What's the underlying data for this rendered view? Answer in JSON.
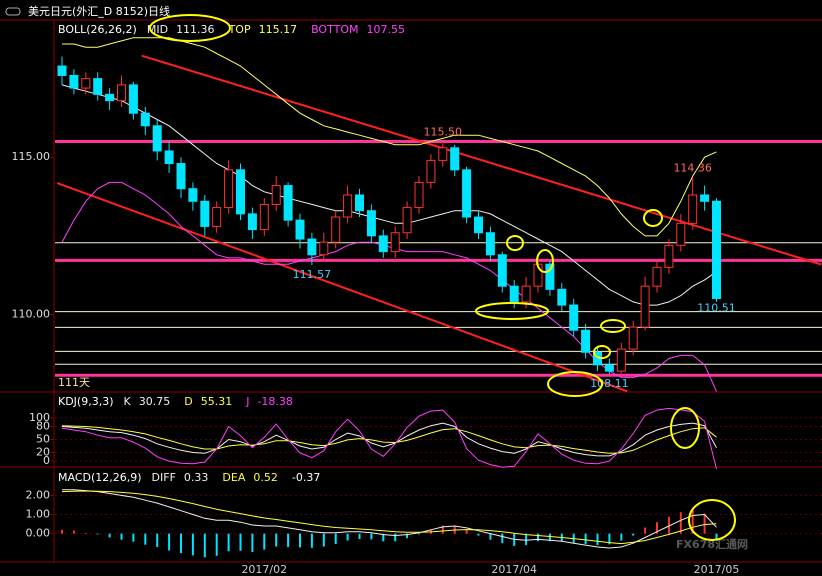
{
  "chart_data": [
    {
      "type": "candlestick",
      "title": "美元日元(外汇_D 8152)日线",
      "indicator": "BOLL(26,26,2)",
      "categories": [
        null,
        null,
        null,
        null,
        null,
        null,
        null,
        null,
        null,
        null,
        null,
        null,
        null,
        null,
        null,
        null,
        null,
        "2017/02",
        null,
        null,
        null,
        null,
        null,
        null,
        null,
        null,
        null,
        null,
        null,
        null,
        null,
        null,
        null,
        null,
        null,
        null,
        null,
        null,
        "2017/04",
        null,
        null,
        null,
        null,
        null,
        null,
        null,
        null,
        null,
        null,
        null,
        null,
        null,
        null,
        null,
        null,
        "2017/05"
      ],
      "open": [
        117.9,
        117.6,
        117.2,
        117.5,
        117.0,
        116.8,
        117.3,
        116.4,
        116.0,
        115.2,
        114.8,
        114.0,
        113.6,
        112.8,
        113.4,
        114.6,
        113.2,
        112.7,
        113.5,
        114.1,
        113.0,
        112.4,
        111.9,
        112.3,
        113.1,
        113.8,
        113.3,
        112.5,
        112.0,
        112.6,
        113.4,
        114.2,
        114.9,
        115.3,
        114.6,
        113.1,
        112.6,
        111.9,
        110.9,
        110.4,
        110.9,
        111.6,
        110.8,
        110.3,
        109.5,
        108.8,
        108.4,
        108.2,
        108.9,
        109.6,
        110.9,
        111.5,
        112.2,
        112.9,
        113.8,
        113.6
      ],
      "high": [
        118.2,
        117.8,
        117.7,
        117.7,
        117.2,
        117.6,
        117.4,
        116.6,
        116.2,
        115.5,
        115.0,
        114.2,
        113.8,
        113.6,
        114.9,
        114.8,
        113.4,
        113.7,
        114.4,
        114.2,
        113.2,
        112.6,
        112.6,
        113.3,
        114.1,
        114.0,
        113.5,
        112.7,
        112.8,
        113.6,
        114.4,
        115.1,
        115.5,
        115.4,
        114.7,
        113.3,
        112.8,
        112.0,
        111.1,
        111.2,
        111.9,
        111.7,
        111.0,
        110.5,
        109.7,
        109.0,
        108.6,
        109.1,
        109.8,
        111.2,
        111.7,
        112.4,
        113.2,
        114.36,
        114.1,
        113.7
      ],
      "low": [
        117.3,
        117.0,
        117.0,
        116.8,
        116.5,
        116.6,
        116.2,
        115.7,
        114.9,
        114.5,
        113.7,
        113.3,
        112.5,
        112.6,
        113.2,
        113.0,
        112.4,
        112.5,
        113.3,
        112.8,
        112.1,
        111.57,
        111.7,
        112.1,
        112.9,
        113.1,
        112.3,
        111.8,
        111.8,
        112.4,
        113.2,
        114.0,
        114.7,
        114.4,
        112.9,
        112.4,
        111.7,
        110.7,
        110.2,
        110.2,
        110.7,
        110.6,
        110.1,
        109.3,
        108.6,
        108.2,
        108.11,
        108.13,
        108.7,
        109.5,
        110.7,
        111.3,
        112.0,
        112.7,
        113.3,
        110.4
      ],
      "close": [
        117.6,
        117.2,
        117.5,
        117.0,
        116.8,
        117.3,
        116.4,
        116.0,
        115.2,
        114.8,
        114.0,
        113.6,
        112.8,
        113.4,
        114.6,
        113.2,
        112.7,
        113.5,
        114.1,
        113.0,
        112.4,
        111.9,
        112.3,
        113.1,
        113.8,
        113.3,
        112.5,
        112.0,
        112.6,
        113.4,
        114.2,
        114.9,
        115.3,
        114.6,
        113.1,
        112.6,
        111.9,
        110.9,
        110.4,
        110.9,
        111.6,
        110.8,
        110.3,
        109.5,
        108.8,
        108.4,
        108.2,
        108.9,
        109.6,
        110.9,
        111.5,
        112.2,
        112.9,
        113.8,
        113.6,
        110.51
      ],
      "up_color": "#ff3232",
      "down_color": "#00e5ff",
      "series": [
        {
          "name": "MID",
          "color": "#f0f0f0",
          "values": [
            117.3,
            117.2,
            117.1,
            117.0,
            116.9,
            116.8,
            116.6,
            116.4,
            116.2,
            116.0,
            115.7,
            115.4,
            115.1,
            114.8,
            114.6,
            114.4,
            114.1,
            113.9,
            113.8,
            113.7,
            113.6,
            113.5,
            113.4,
            113.3,
            113.3,
            113.2,
            113.1,
            113.0,
            112.9,
            112.9,
            113.0,
            113.1,
            113.2,
            113.3,
            113.3,
            113.3,
            113.2,
            113.0,
            112.8,
            112.6,
            112.4,
            112.2,
            112.0,
            111.7,
            111.4,
            111.1,
            110.8,
            110.6,
            110.4,
            110.3,
            110.3,
            110.4,
            110.6,
            110.9,
            111.1,
            111.36
          ]
        },
        {
          "name": "TOP",
          "color": "#ffff66",
          "values": [
            118.6,
            118.6,
            118.5,
            118.5,
            118.6,
            118.7,
            118.8,
            118.8,
            118.8,
            118.8,
            118.7,
            118.6,
            118.5,
            118.3,
            118.1,
            117.9,
            117.6,
            117.3,
            117.0,
            116.7,
            116.4,
            116.2,
            116.0,
            115.9,
            115.8,
            115.7,
            115.6,
            115.5,
            115.4,
            115.4,
            115.4,
            115.5,
            115.6,
            115.7,
            115.7,
            115.7,
            115.6,
            115.5,
            115.4,
            115.3,
            115.2,
            115.0,
            114.8,
            114.6,
            114.4,
            114.1,
            113.7,
            113.2,
            112.8,
            112.5,
            112.5,
            112.9,
            113.6,
            114.4,
            115.0,
            115.17
          ]
        },
        {
          "name": "BOTTOM",
          "color": "#ff40ff",
          "values": [
            112.3,
            113.0,
            113.6,
            114.0,
            114.2,
            114.2,
            114.0,
            113.8,
            113.5,
            113.2,
            112.8,
            112.5,
            112.2,
            111.9,
            111.8,
            111.8,
            111.7,
            111.6,
            111.6,
            111.6,
            111.7,
            111.8,
            111.9,
            112.0,
            112.2,
            112.3,
            112.3,
            112.2,
            112.1,
            112.0,
            112.0,
            112.0,
            112.0,
            111.9,
            111.8,
            111.6,
            111.4,
            111.1,
            110.8,
            110.5,
            110.2,
            109.9,
            109.6,
            109.3,
            108.9,
            108.5,
            108.2,
            108.0,
            108.0,
            108.1,
            108.3,
            108.6,
            108.7,
            108.7,
            108.4,
            107.55
          ]
        }
      ],
      "ylim": [
        107.6,
        119.3
      ],
      "yticks": [
        {
          "value": 110,
          "label": "110.00"
        },
        {
          "value": 115,
          "label": "115.00"
        }
      ],
      "levels": [
        {
          "value": 115.5,
          "color": "#ff3399",
          "width": 3
        },
        {
          "value": 111.72,
          "color": "#ff3399",
          "width": 3
        },
        {
          "value": 108.07,
          "color": "#ff3399",
          "width": 3
        },
        {
          "value": 112.28,
          "color": "#f5f5c8",
          "width": 1
        },
        {
          "value": 110.09,
          "color": "#f5f5c8",
          "width": 1
        },
        {
          "value": 109.59,
          "color": "#f5f5c8",
          "width": 1
        },
        {
          "value": 108.83,
          "color": "#f5f5c8",
          "width": 1
        },
        {
          "value": 108.42,
          "color": "#f5f5c8",
          "width": 1
        }
      ],
      "trend_lines": [
        {
          "color": "#ff2020",
          "points": [
            [
              6.7,
              118.23
            ],
            [
              63.8,
              111.59
            ]
          ]
        },
        {
          "color": "#ff2020",
          "points": [
            [
              -0.4,
              114.18
            ],
            [
              47.5,
              107.56
            ]
          ]
        }
      ],
      "annotations": [
        {
          "text": "115.50",
          "value": 115.5,
          "index": 32,
          "color": "#ff6a5a"
        },
        {
          "text": "114.36",
          "value": 114.36,
          "index": 53,
          "color": "#ff6a5a"
        },
        {
          "text": "111.57",
          "value": 111.57,
          "index": 21,
          "color": "#40d0ff"
        },
        {
          "text": "110.51",
          "value": 110.51,
          "index": 55,
          "color": "#40d0ff"
        },
        {
          "text": "108.11",
          "value": 108.11,
          "index": 46,
          "color": "#40d0ff"
        }
      ],
      "note": "111天"
    },
    {
      "type": "line",
      "title": "KDJ(9,3,3)",
      "series": [
        {
          "name": "K",
          "color": "#f0f0f0",
          "values": [
            80,
            78,
            76,
            72,
            68,
            66,
            60,
            52,
            40,
            32,
            25,
            20,
            18,
            28,
            50,
            45,
            35,
            45,
            60,
            48,
            35,
            28,
            32,
            50,
            65,
            58,
            42,
            33,
            42,
            58,
            72,
            82,
            88,
            80,
            55,
            40,
            30,
            22,
            18,
            28,
            45,
            38,
            28,
            20,
            15,
            12,
            12,
            22,
            38,
            60,
            72,
            80,
            85,
            88,
            82,
            30.75
          ]
        },
        {
          "name": "D",
          "color": "#ffff40",
          "values": [
            82,
            81,
            80,
            78,
            75,
            72,
            68,
            63,
            55,
            48,
            40,
            33,
            28,
            28,
            35,
            38,
            37,
            40,
            47,
            47,
            43,
            38,
            36,
            41,
            49,
            52,
            49,
            44,
            43,
            48,
            56,
            65,
            73,
            75,
            68,
            59,
            49,
            40,
            33,
            31,
            36,
            37,
            34,
            29,
            25,
            21,
            18,
            19,
            25,
            37,
            49,
            59,
            68,
            75,
            77,
            55.31
          ]
        },
        {
          "name": "J",
          "color": "#ff40ff",
          "values": [
            76,
            72,
            68,
            60,
            54,
            54,
            44,
            30,
            10,
            0,
            -5,
            -6,
            -2,
            28,
            80,
            59,
            31,
            55,
            86,
            50,
            19,
            8,
            24,
            68,
            97,
            70,
            28,
            11,
            40,
            78,
            104,
            116,
            118,
            90,
            29,
            2,
            -8,
            -14,
            -12,
            22,
            63,
            40,
            16,
            2,
            -5,
            -6,
            0,
            28,
            64,
            106,
            118,
            122,
            119,
            114,
            92,
            -18.38
          ]
        }
      ],
      "ylim": [
        -9,
        153
      ],
      "yticks": [
        0,
        20,
        50,
        80,
        100
      ]
    },
    {
      "type": "macd",
      "title": "MACD(12,26,9)",
      "series": [
        {
          "name": "DIFF",
          "color": "#f0f0f0",
          "values": [
            2.3,
            2.3,
            2.25,
            2.2,
            2.1,
            2.0,
            1.9,
            1.75,
            1.6,
            1.4,
            1.2,
            1.0,
            0.8,
            0.7,
            0.7,
            0.6,
            0.45,
            0.4,
            0.4,
            0.3,
            0.2,
            0.1,
            0.05,
            0.05,
            0.1,
            0.1,
            0.05,
            -0.05,
            -0.1,
            -0.05,
            0.05,
            0.2,
            0.35,
            0.4,
            0.3,
            0.15,
            0.0,
            -0.15,
            -0.3,
            -0.35,
            -0.3,
            -0.35,
            -0.4,
            -0.5,
            -0.6,
            -0.7,
            -0.75,
            -0.7,
            -0.5,
            -0.2,
            0.1,
            0.4,
            0.7,
            0.95,
            1.0,
            0.33
          ]
        },
        {
          "name": "DEA",
          "color": "#ffff40",
          "values": [
            2.2,
            2.22,
            2.23,
            2.22,
            2.2,
            2.16,
            2.11,
            2.04,
            1.95,
            1.84,
            1.71,
            1.57,
            1.42,
            1.28,
            1.16,
            1.05,
            0.93,
            0.82,
            0.74,
            0.65,
            0.56,
            0.47,
            0.39,
            0.32,
            0.28,
            0.24,
            0.2,
            0.15,
            0.1,
            0.07,
            0.07,
            0.09,
            0.14,
            0.19,
            0.21,
            0.2,
            0.16,
            0.1,
            0.02,
            -0.05,
            -0.1,
            -0.15,
            -0.2,
            -0.26,
            -0.33,
            -0.4,
            -0.47,
            -0.52,
            -0.45,
            -0.36,
            -0.2,
            -0.04,
            0.14,
            0.33,
            0.48,
            0.52
          ]
        }
      ],
      "histogram": {
        "up_color": "#ff3232",
        "down_color": "#00e5ff",
        "values": [
          0.2,
          0.16,
          0.04,
          -0.04,
          -0.2,
          -0.32,
          -0.42,
          -0.58,
          -0.7,
          -0.88,
          -1.02,
          -1.14,
          -1.24,
          -1.16,
          -0.92,
          -0.9,
          -0.96,
          -0.84,
          -0.68,
          -0.7,
          -0.72,
          -0.74,
          -0.68,
          -0.54,
          -0.36,
          -0.28,
          -0.3,
          -0.4,
          -0.4,
          -0.24,
          -0.04,
          0.22,
          0.42,
          0.42,
          0.18,
          -0.1,
          -0.32,
          -0.5,
          -0.64,
          -0.6,
          -0.4,
          -0.4,
          -0.4,
          -0.48,
          -0.54,
          -0.6,
          -0.56,
          -0.36,
          -0.1,
          0.32,
          0.6,
          0.88,
          1.12,
          1.24,
          1.04,
          -0.37
        ]
      },
      "ylim": [
        -1.38,
        3.33
      ],
      "yticks": [
        {
          "value": 0,
          "label": "0.00"
        },
        {
          "value": 1,
          "label": "1.00"
        },
        {
          "value": 2,
          "label": "2.00"
        }
      ],
      "watermark": "FX678汇通网"
    }
  ]
}
